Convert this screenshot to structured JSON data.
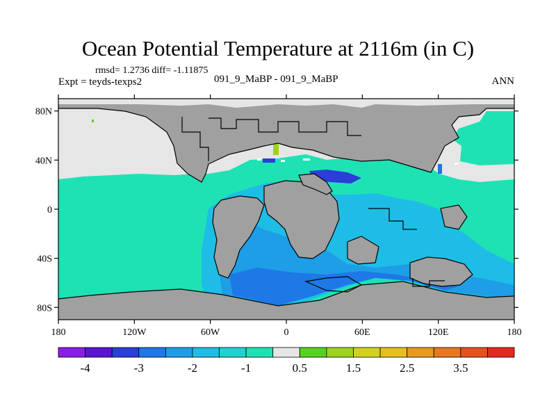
{
  "title": "Ocean Potential Temperature at 2116m (in C)",
  "stats": "rmsd= 1.2736 diff= -1.11875",
  "expt": "Expt = teyds-texps2",
  "case": "091_9_MaBP - 091_9_MaBP",
  "season": "ANN",
  "axes": {
    "lat_ticks": [
      "80N",
      "40N",
      "0",
      "40S",
      "80S"
    ],
    "lon_ticks": [
      "180",
      "120W",
      "60W",
      "0",
      "60E",
      "120E",
      "180"
    ]
  },
  "colorbar": {
    "colors": [
      "#8a1ee6",
      "#5a14d2",
      "#2a3ed8",
      "#1e78e6",
      "#1e9ee6",
      "#1ebde6",
      "#1ed2d2",
      "#1ee2b4",
      "#e6e6e6",
      "#55d21e",
      "#9ed21e",
      "#d2d21e",
      "#e6be1e",
      "#e69a1e",
      "#e6781e",
      "#e6501e",
      "#e6281e"
    ],
    "labels": [
      "-4",
      "-3",
      "-2",
      "-1",
      "0.5",
      "1.5",
      "2.5",
      "3.5"
    ]
  },
  "legend_colors": {
    "land": "#a0a0a0",
    "no_data": "#e6e6e6",
    "background_water": "#1ee2b4",
    "light_blue": "#1ebde6",
    "mid_blue": "#1e9ee6",
    "deep_blue": "#1e78e6",
    "dark_blue": "#2a3ed8",
    "positive_anomaly": "#9ed21e"
  }
}
